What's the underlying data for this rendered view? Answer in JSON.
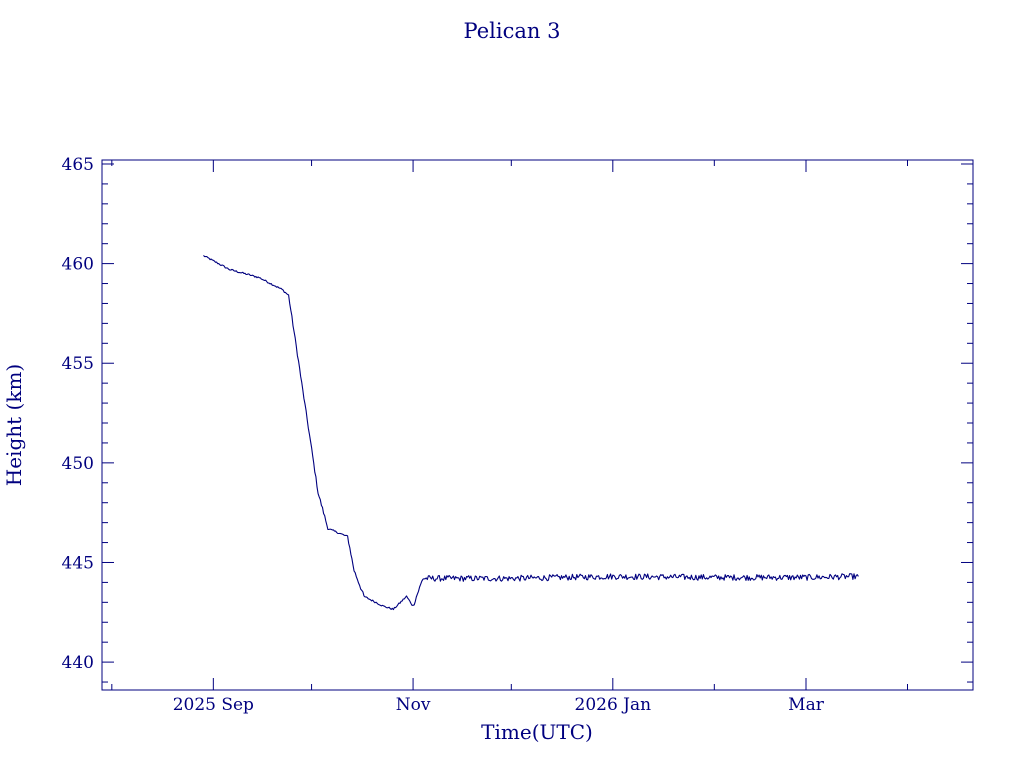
{
  "colors": {
    "ink": "#00007f",
    "background": "#ffffff"
  },
  "chart_data": {
    "type": "line",
    "title": "Pelican 3",
    "xlabel": "Time(UTC)",
    "ylabel": "Height (km)",
    "x_axis": {
      "type": "date",
      "range": [
        "2025-07-29",
        "2026-04-21"
      ],
      "tick_labels": [
        {
          "date": "2025-09-01",
          "label": "2025 Sep"
        },
        {
          "date": "2025-11-01",
          "label": "Nov"
        },
        {
          "date": "2026-01-01",
          "label": "2026 Jan"
        },
        {
          "date": "2026-03-01",
          "label": "Mar"
        }
      ],
      "minor_ticks": [
        "2025-08-01",
        "2025-10-01",
        "2025-12-01",
        "2026-02-01",
        "2026-04-01"
      ]
    },
    "y_axis": {
      "range": [
        438.6,
        465.2
      ],
      "ticks": [
        440,
        445,
        450,
        455,
        460,
        465
      ],
      "minor_step": 1
    },
    "grid": false,
    "legend": "none",
    "series": [
      {
        "noise": 0.15,
        "points": [
          {
            "x": "2025-08-29",
            "y": 460.4
          },
          {
            "x": "2025-09-06",
            "y": 459.7
          },
          {
            "x": "2025-09-15",
            "y": 459.3
          },
          {
            "x": "2025-09-22",
            "y": 458.7
          },
          {
            "x": "2025-09-24",
            "y": 458.4
          },
          {
            "x": "2025-09-28",
            "y": 454.0
          },
          {
            "x": "2025-10-03",
            "y": 448.5
          },
          {
            "x": "2025-10-06",
            "y": 446.7
          },
          {
            "x": "2025-10-12",
            "y": 446.3
          },
          {
            "x": "2025-10-14",
            "y": 444.6
          },
          {
            "x": "2025-10-17",
            "y": 443.3
          },
          {
            "x": "2025-10-23",
            "y": 442.8
          },
          {
            "x": "2025-10-26",
            "y": 442.65
          },
          {
            "x": "2025-10-30",
            "y": 443.3
          },
          {
            "x": "2025-11-01",
            "y": 442.8
          },
          {
            "x": "2025-11-04",
            "y": 444.2
          },
          {
            "x": "2025-12-01",
            "y": 444.2
          },
          {
            "x": "2026-01-01",
            "y": 444.3
          },
          {
            "x": "2026-02-01",
            "y": 444.25
          },
          {
            "x": "2026-03-01",
            "y": 444.25
          },
          {
            "x": "2026-03-17",
            "y": 444.3
          }
        ]
      }
    ]
  }
}
